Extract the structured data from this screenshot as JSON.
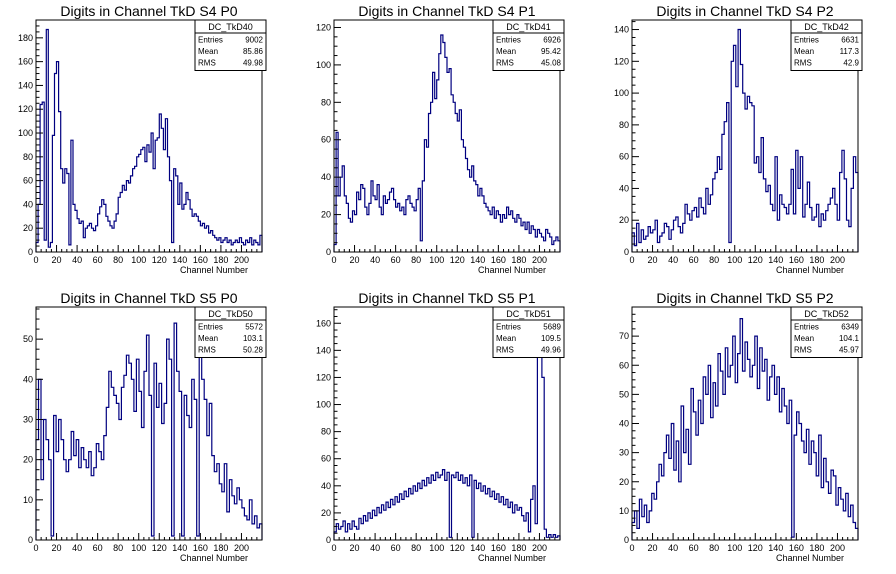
{
  "page": {
    "background": "#ffffff"
  },
  "style": {
    "histogram_color": "#000080",
    "frame_color": "#000000"
  },
  "chart_data": [
    {
      "type": "histogram",
      "title": "Digits in Channel TkD S4 P0",
      "xlabel": "Channel Number",
      "xlim": [
        0,
        220
      ],
      "ylim": [
        0,
        195
      ],
      "xticks": [
        0,
        20,
        40,
        60,
        80,
        100,
        120,
        140,
        160,
        180,
        200
      ],
      "yticks": [
        0,
        20,
        40,
        60,
        80,
        100,
        120,
        140,
        160,
        180
      ],
      "stats": {
        "name": "DC_TkD40",
        "rows": [
          [
            "Entries",
            "9002"
          ],
          [
            "Mean",
            "85.86"
          ],
          [
            "RMS",
            "49.98"
          ]
        ]
      },
      "values": [
        8,
        40,
        124,
        126,
        10,
        187,
        4,
        8,
        98,
        150,
        160,
        118,
        70,
        58,
        70,
        66,
        6,
        94,
        40,
        35,
        28,
        24,
        26,
        12,
        20,
        22,
        24,
        20,
        18,
        22,
        32,
        38,
        44,
        40,
        30,
        26,
        22,
        20,
        26,
        32,
        46,
        50,
        56,
        52,
        60,
        58,
        64,
        70,
        72,
        80,
        82,
        86,
        88,
        76,
        90,
        84,
        100,
        70,
        94,
        96,
        116,
        104,
        86,
        112,
        80,
        60,
        8,
        70,
        64,
        40,
        58,
        36,
        40,
        50,
        44,
        36,
        30,
        32,
        30,
        26,
        22,
        24,
        20,
        22,
        16,
        18,
        14,
        12,
        10,
        12,
        8,
        10,
        12,
        8,
        10,
        6,
        8,
        10,
        8,
        12,
        8,
        6,
        10,
        8,
        12,
        6,
        10,
        8,
        6,
        14
      ]
    },
    {
      "type": "histogram",
      "title": "Digits in Channel TkD S4 P1",
      "xlabel": "Channel Number",
      "xlim": [
        0,
        220
      ],
      "ylim": [
        0,
        124
      ],
      "xticks": [
        0,
        20,
        40,
        60,
        80,
        100,
        120,
        140,
        160,
        180,
        200
      ],
      "yticks": [
        0,
        20,
        40,
        60,
        80,
        100,
        120
      ],
      "stats": {
        "name": "DC_TkD41",
        "rows": [
          [
            "Entries",
            "6926"
          ],
          [
            "Mean",
            "95.42"
          ],
          [
            "RMS",
            "45.08"
          ]
        ]
      },
      "values": [
        4,
        64,
        30,
        40,
        46,
        30,
        26,
        18,
        16,
        22,
        20,
        32,
        28,
        36,
        34,
        24,
        20,
        26,
        38,
        30,
        28,
        36,
        24,
        20,
        30,
        26,
        28,
        32,
        34,
        28,
        24,
        26,
        22,
        24,
        20,
        28,
        30,
        26,
        24,
        22,
        28,
        34,
        6,
        38,
        60,
        56,
        74,
        80,
        96,
        82,
        92,
        106,
        116,
        112,
        104,
        96,
        98,
        84,
        80,
        74,
        70,
        76,
        60,
        56,
        50,
        44,
        40,
        46,
        38,
        36,
        30,
        34,
        30,
        26,
        24,
        22,
        20,
        24,
        18,
        22,
        20,
        16,
        20,
        18,
        24,
        20,
        22,
        18,
        16,
        20,
        18,
        14,
        16,
        12,
        16,
        10,
        14,
        12,
        8,
        12,
        10,
        8,
        6,
        12,
        10,
        8,
        4,
        6,
        8,
        6
      ]
    },
    {
      "type": "histogram",
      "title": "Digits in Channel TkD S4 P2",
      "xlabel": "Channel Number",
      "xlim": [
        0,
        220
      ],
      "ylim": [
        0,
        146
      ],
      "xticks": [
        0,
        20,
        40,
        60,
        80,
        100,
        120,
        140,
        160,
        180,
        200
      ],
      "yticks": [
        0,
        20,
        40,
        60,
        80,
        100,
        120,
        140
      ],
      "stats": {
        "name": "DC_TkD42",
        "rows": [
          [
            "Entries",
            "6631"
          ],
          [
            "Mean",
            "117.3"
          ],
          [
            "RMS",
            "42.9"
          ]
        ]
      },
      "values": [
        12,
        4,
        18,
        6,
        14,
        8,
        10,
        16,
        12,
        14,
        20,
        6,
        10,
        12,
        18,
        16,
        8,
        14,
        20,
        22,
        16,
        12,
        18,
        30,
        24,
        20,
        26,
        28,
        22,
        34,
        28,
        24,
        40,
        30,
        36,
        46,
        50,
        60,
        52,
        74,
        82,
        94,
        6,
        120,
        130,
        104,
        140,
        118,
        100,
        90,
        98,
        94,
        92,
        56,
        60,
        50,
        72,
        46,
        38,
        42,
        30,
        26,
        60,
        20,
        36,
        30,
        28,
        24,
        30,
        52,
        24,
        64,
        40,
        60,
        22,
        30,
        44,
        28,
        20,
        22,
        30,
        16,
        24,
        20,
        26,
        30,
        34,
        40,
        30,
        20,
        50,
        64,
        46,
        20,
        16,
        40,
        60,
        50
      ]
    },
    {
      "type": "histogram",
      "title": "Digits in Channel TkD S5 P0",
      "xlabel": "Channel Number",
      "xlim": [
        0,
        220
      ],
      "ylim": [
        0,
        58
      ],
      "xticks": [
        0,
        20,
        40,
        60,
        80,
        100,
        120,
        140,
        160,
        180,
        200
      ],
      "yticks": [
        0,
        10,
        20,
        30,
        40,
        50
      ],
      "stats": {
        "name": "DC_TkD50",
        "rows": [
          [
            "Entries",
            "5572"
          ],
          [
            "Mean",
            "103.1"
          ],
          [
            "RMS",
            "50.28"
          ]
        ]
      },
      "values": [
        25,
        40,
        15,
        30,
        25,
        20,
        1,
        31,
        22,
        30,
        25,
        20,
        17,
        20,
        27,
        21,
        25,
        18,
        23,
        20,
        18,
        22,
        16,
        18,
        24,
        22,
        20,
        26,
        33,
        42,
        38,
        36,
        34,
        30,
        38,
        41,
        46,
        44,
        40,
        32,
        45,
        37,
        28,
        42,
        51,
        36,
        1,
        44,
        33,
        39,
        29,
        34,
        50,
        45,
        1,
        54,
        42,
        37,
        1,
        36,
        31,
        28,
        40,
        35,
        1,
        55,
        40,
        35,
        26,
        34,
        21,
        17,
        19,
        14,
        12,
        19,
        7,
        15,
        11,
        9,
        13,
        10,
        8,
        6,
        5,
        10,
        4,
        6,
        3,
        4
      ]
    },
    {
      "type": "histogram",
      "title": "Digits in Channel TkD S5 P1",
      "xlabel": "Channel Number",
      "xlim": [
        0,
        220
      ],
      "ylim": [
        0,
        172
      ],
      "xticks": [
        0,
        20,
        40,
        60,
        80,
        100,
        120,
        140,
        160,
        180,
        200
      ],
      "yticks": [
        0,
        20,
        40,
        60,
        80,
        100,
        120,
        140,
        160
      ],
      "stats": {
        "name": "DC_TkD51",
        "rows": [
          [
            "Entries",
            "5689"
          ],
          [
            "Mean",
            "109.5"
          ],
          [
            "RMS",
            "49.96"
          ]
        ]
      },
      "values": [
        6,
        12,
        8,
        10,
        14,
        6,
        12,
        8,
        14,
        10,
        8,
        16,
        12,
        18,
        14,
        20,
        16,
        22,
        18,
        24,
        20,
        26,
        22,
        28,
        24,
        30,
        26,
        32,
        28,
        34,
        30,
        36,
        32,
        38,
        34,
        40,
        36,
        42,
        38,
        44,
        40,
        46,
        42,
        48,
        44,
        50,
        46,
        48,
        52,
        44,
        50,
        2,
        48,
        46,
        50,
        44,
        48,
        42,
        46,
        40,
        48,
        2,
        44,
        38,
        42,
        36,
        40,
        34,
        38,
        32,
        36,
        30,
        34,
        28,
        32,
        26,
        30,
        24,
        28,
        20,
        26,
        22,
        24,
        18,
        14,
        20,
        6,
        30,
        40,
        12,
        150,
        160,
        120,
        8,
        2,
        4,
        2,
        4,
        2,
        3
      ]
    },
    {
      "type": "histogram",
      "title": "Digits in Channel TkD S5 P2",
      "xlabel": "Channel Number",
      "xlim": [
        0,
        220
      ],
      "ylim": [
        0,
        80
      ],
      "xticks": [
        0,
        20,
        40,
        60,
        80,
        100,
        120,
        140,
        160,
        180,
        200
      ],
      "yticks": [
        0,
        10,
        20,
        30,
        40,
        50,
        60,
        70
      ],
      "stats": {
        "name": "DC_TkD52",
        "rows": [
          [
            "Entries",
            "6349"
          ],
          [
            "Mean",
            "104.1"
          ],
          [
            "RMS",
            "45.97"
          ]
        ]
      },
      "values": [
        6,
        10,
        4,
        14,
        8,
        12,
        6,
        10,
        16,
        14,
        20,
        26,
        22,
        30,
        36,
        28,
        40,
        24,
        34,
        20,
        46,
        30,
        38,
        26,
        52,
        44,
        36,
        48,
        40,
        56,
        50,
        60,
        42,
        54,
        46,
        64,
        58,
        50,
        66,
        56,
        60,
        70,
        54,
        64,
        76,
        58,
        68,
        62,
        56,
        60,
        70,
        52,
        66,
        58,
        62,
        48,
        56,
        60,
        50,
        56,
        44,
        52,
        46,
        40,
        48,
        1,
        36,
        44,
        40,
        34,
        30,
        38,
        26,
        34,
        30,
        22,
        36,
        18,
        28,
        20,
        16,
        24,
        22,
        12,
        18,
        14,
        10,
        16,
        8,
        12,
        6,
        4
      ]
    }
  ]
}
